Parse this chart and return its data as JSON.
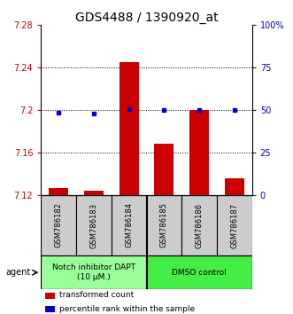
{
  "title": "GDS4488 / 1390920_at",
  "samples": [
    "GSM786182",
    "GSM786183",
    "GSM786184",
    "GSM786185",
    "GSM786186",
    "GSM786187"
  ],
  "bar_values": [
    7.127,
    7.124,
    7.245,
    7.168,
    7.2,
    7.136
  ],
  "percentile_y": [
    7.198,
    7.197,
    7.201,
    7.2,
    7.2,
    7.2
  ],
  "ylim": [
    7.12,
    7.28
  ],
  "yticks": [
    7.12,
    7.16,
    7.2,
    7.24,
    7.28
  ],
  "ytick_labels": [
    "7.12",
    "7.16",
    "7.2",
    "7.24",
    "7.28"
  ],
  "right_yticks": [
    0,
    25,
    50,
    75,
    100
  ],
  "right_ytick_labels": [
    "0",
    "25",
    "50",
    "75",
    "100%"
  ],
  "bar_color": "#cc0000",
  "percentile_color": "#0000cc",
  "agent_groups": [
    {
      "label": "Notch inhibitor DAPT\n(10 μM.)",
      "samples": [
        0,
        1,
        2
      ],
      "color": "#99ff99"
    },
    {
      "label": "DMSO control",
      "samples": [
        3,
        4,
        5
      ],
      "color": "#44ee44"
    }
  ],
  "agent_label": "agent",
  "legend_items": [
    {
      "color": "#cc0000",
      "label": "transformed count"
    },
    {
      "color": "#0000cc",
      "label": "percentile rank within the sample"
    }
  ],
  "title_fontsize": 10,
  "tick_fontsize": 7,
  "bar_width": 0.55,
  "sample_box_color": "#cccccc",
  "sample_box_edge": "#000000"
}
